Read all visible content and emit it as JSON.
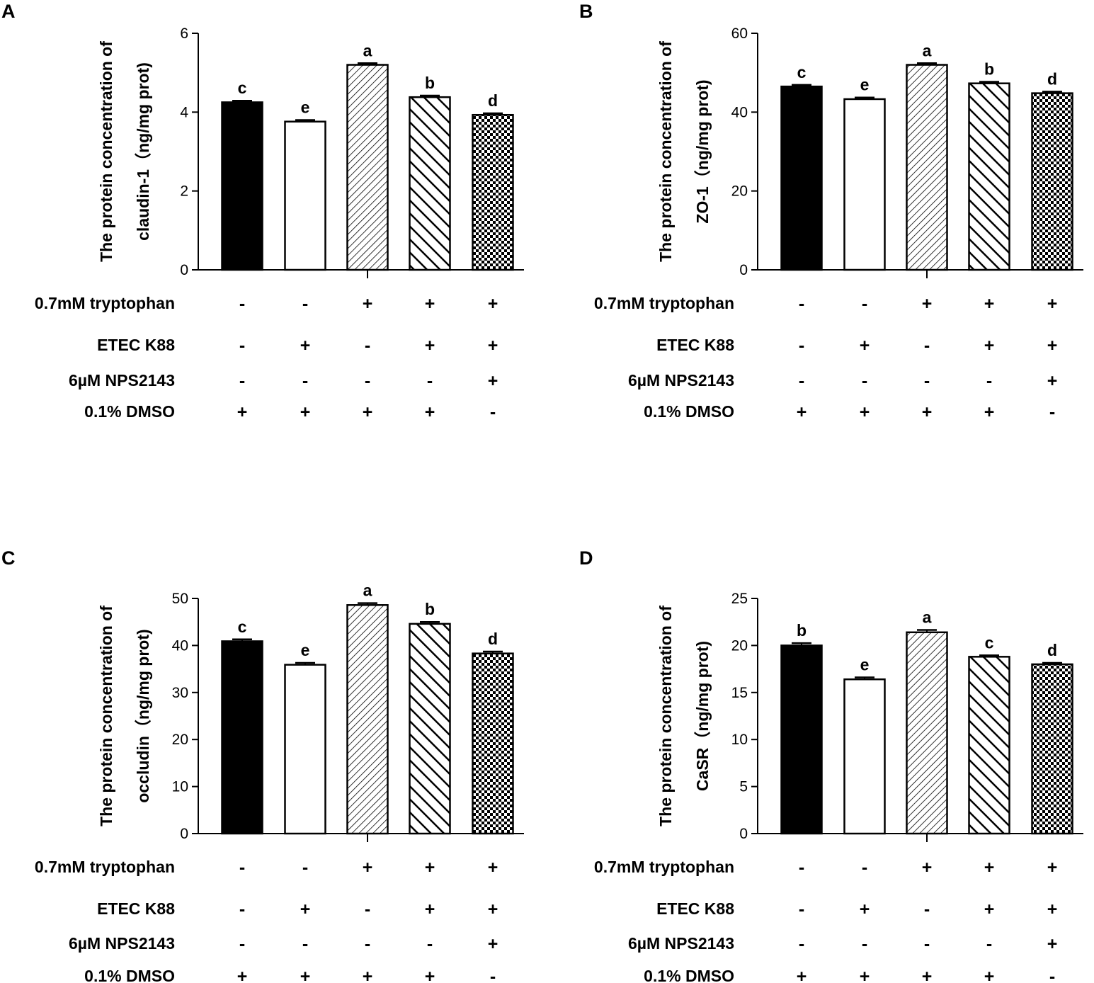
{
  "figure": {
    "conditions": [
      "0.7mM tryptophan",
      "ETEC K88",
      "6µM NPS2143",
      "0.1% DMSO"
    ],
    "signs": [
      [
        "-",
        "-",
        "+",
        "+",
        "+"
      ],
      [
        "-",
        "+",
        "-",
        "+",
        "+"
      ],
      [
        "-",
        "-",
        "-",
        "-",
        "+"
      ],
      [
        "+",
        "+",
        "+",
        "+",
        "-"
      ]
    ],
    "patterns": [
      "solid",
      "open",
      "fine-diagonal",
      "bold-diagonal",
      "checker"
    ]
  },
  "chart_data": [
    {
      "panel": "A",
      "type": "bar",
      "ylabel_line1": "The protein concentration of",
      "ylabel_line2": "claudin-1（ng/mg prot)",
      "ylim": [
        0,
        6
      ],
      "yticks": [
        0,
        2,
        4,
        6
      ],
      "values": [
        4.25,
        3.76,
        5.2,
        4.38,
        3.93
      ],
      "errors": [
        0.04,
        0.04,
        0.04,
        0.04,
        0.04
      ],
      "letters": [
        "c",
        "e",
        "a",
        "b",
        "d"
      ]
    },
    {
      "panel": "B",
      "type": "bar",
      "ylabel_line1": "The protein concentration of",
      "ylabel_line2": "ZO-1（ng/mg prot)",
      "ylim": [
        0,
        60
      ],
      "yticks": [
        0,
        20,
        40,
        60
      ],
      "values": [
        46.5,
        43.3,
        52.0,
        47.3,
        44.8
      ],
      "errors": [
        0.4,
        0.4,
        0.4,
        0.4,
        0.4
      ],
      "letters": [
        "c",
        "e",
        "a",
        "b",
        "d"
      ]
    },
    {
      "panel": "C",
      "type": "bar",
      "ylabel_line1": "The protein concentration of",
      "ylabel_line2": "occludin（ng/mg prot)",
      "ylim": [
        0,
        50
      ],
      "yticks": [
        0,
        10,
        20,
        30,
        40,
        50
      ],
      "values": [
        40.9,
        35.9,
        48.6,
        44.6,
        38.3
      ],
      "errors": [
        0.4,
        0.4,
        0.4,
        0.4,
        0.4
      ],
      "letters": [
        "c",
        "e",
        "a",
        "b",
        "d"
      ]
    },
    {
      "panel": "D",
      "type": "bar",
      "ylabel_line1": "The protein concentration of",
      "ylabel_line2": "CaSR（ng/mg prot)",
      "ylim": [
        0,
        25
      ],
      "yticks": [
        0,
        5,
        10,
        15,
        20,
        25
      ],
      "values": [
        20.0,
        16.4,
        21.4,
        18.8,
        18.0
      ],
      "errors": [
        0.25,
        0.2,
        0.25,
        0.15,
        0.15
      ],
      "letters": [
        "b",
        "e",
        "a",
        "c",
        "d"
      ]
    }
  ]
}
